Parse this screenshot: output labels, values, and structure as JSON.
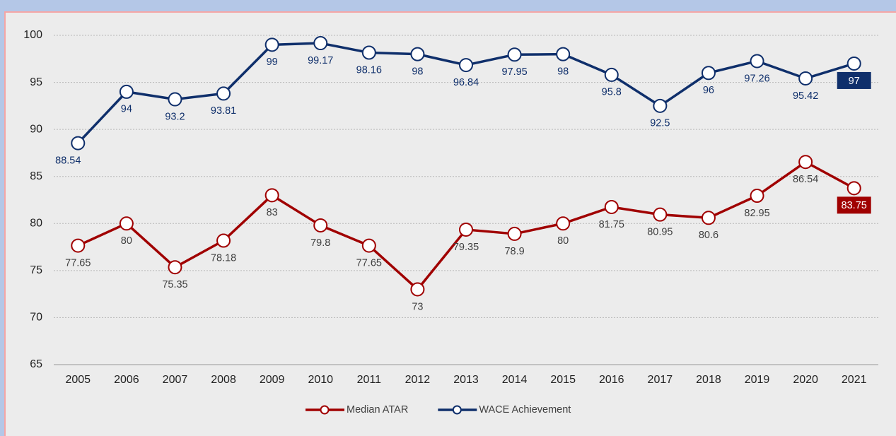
{
  "chart_data": {
    "type": "line",
    "categories": [
      "2005",
      "2006",
      "2007",
      "2008",
      "2009",
      "2010",
      "2011",
      "2012",
      "2013",
      "2014",
      "2015",
      "2016",
      "2017",
      "2018",
      "2019",
      "2020",
      "2021"
    ],
    "series": [
      {
        "name": "Median ATAR",
        "color": "#a00000",
        "values": [
          77.65,
          80,
          75.35,
          78.18,
          83,
          79.8,
          77.65,
          73,
          79.35,
          78.9,
          80,
          81.75,
          80.95,
          80.6,
          82.95,
          86.54,
          83.75
        ]
      },
      {
        "name": "WACE Achievement",
        "color": "#0f2f6b",
        "values": [
          88.54,
          94,
          93.2,
          93.81,
          99,
          99.17,
          98.16,
          98,
          96.84,
          97.95,
          98,
          95.8,
          92.5,
          96,
          97.26,
          95.42,
          97
        ]
      }
    ],
    "ylim": [
      65,
      100
    ],
    "yticks": [
      65,
      70,
      75,
      80,
      85,
      90,
      95,
      100
    ],
    "grid": true,
    "legend": "bottom"
  }
}
